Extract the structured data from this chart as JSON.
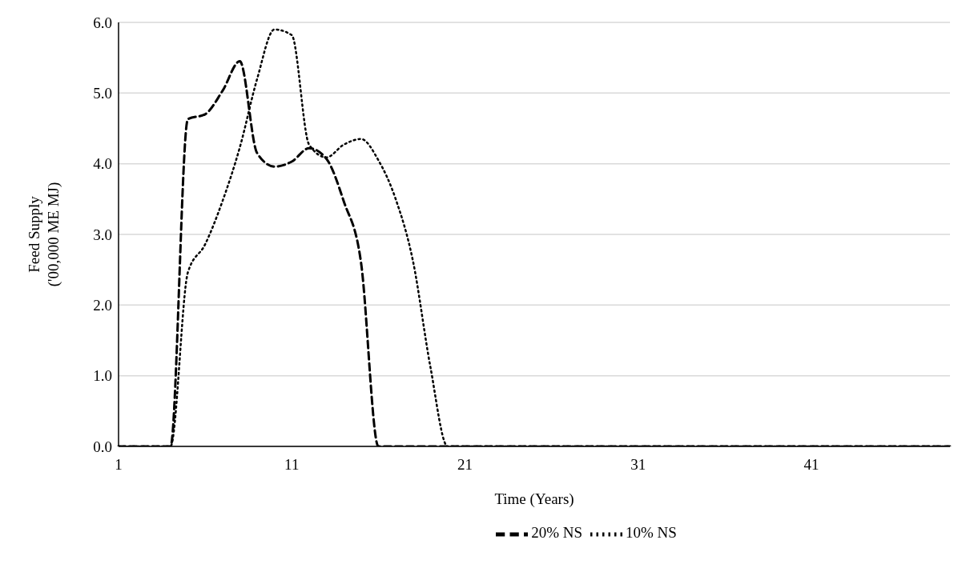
{
  "chart_data": {
    "type": "line",
    "xlabel": "Time (Years)",
    "ylabel": "Feed Supply\n('00,000 ME MJ)",
    "categories": [
      "1",
      null,
      null,
      null,
      null,
      null,
      null,
      null,
      null,
      null,
      "11",
      null,
      null,
      null,
      null,
      null,
      null,
      null,
      null,
      null,
      "21",
      null,
      null,
      null,
      null,
      null,
      null,
      null,
      null,
      null,
      "31",
      null,
      null,
      null,
      null,
      null,
      null,
      null,
      null,
      null,
      "41",
      null,
      null,
      null,
      null,
      null,
      null,
      null,
      null
    ],
    "series": [
      {
        "name": "20% NS",
        "color": "#000000",
        "line_style": "dashed",
        "values": [
          0,
          0,
          0,
          0,
          4.63,
          4.7,
          5.03,
          5.45,
          4.15,
          3.96,
          4.03,
          4.22,
          4.07,
          3.47,
          2.6,
          0,
          0,
          0,
          0,
          0,
          0,
          0,
          0,
          0,
          0,
          0,
          0,
          0,
          0,
          0,
          0,
          0,
          0,
          0,
          0,
          0,
          0,
          0,
          0,
          0,
          0,
          0,
          0,
          0,
          0,
          0,
          0,
          0,
          0
        ]
      },
      {
        "name": "10% NS",
        "color": "#000000",
        "line_style": "dotted",
        "values": [
          0,
          0,
          0,
          0,
          2.46,
          2.86,
          3.47,
          4.23,
          5.2,
          5.9,
          5.82,
          4.27,
          4.09,
          4.27,
          4.35,
          4.05,
          3.5,
          2.62,
          1.13,
          0,
          0,
          0,
          0,
          0,
          0,
          0,
          0,
          0,
          0,
          0,
          0,
          0,
          0,
          0,
          0,
          0,
          0,
          0,
          0,
          0,
          0,
          0,
          0,
          0,
          0,
          0,
          0,
          0,
          0
        ]
      }
    ],
    "ylim": [
      0,
      6
    ],
    "yticks": [
      {
        "value": 0,
        "label": "0.0"
      },
      {
        "value": 1,
        "label": "1.0"
      },
      {
        "value": 2,
        "label": "2.0"
      },
      {
        "value": 3,
        "label": "3.0"
      },
      {
        "value": 4,
        "label": "4.0"
      },
      {
        "value": 5,
        "label": "5.0"
      },
      {
        "value": 6,
        "label": "6.0"
      }
    ],
    "grid": "y",
    "legend": "bottom",
    "marker": "none"
  }
}
